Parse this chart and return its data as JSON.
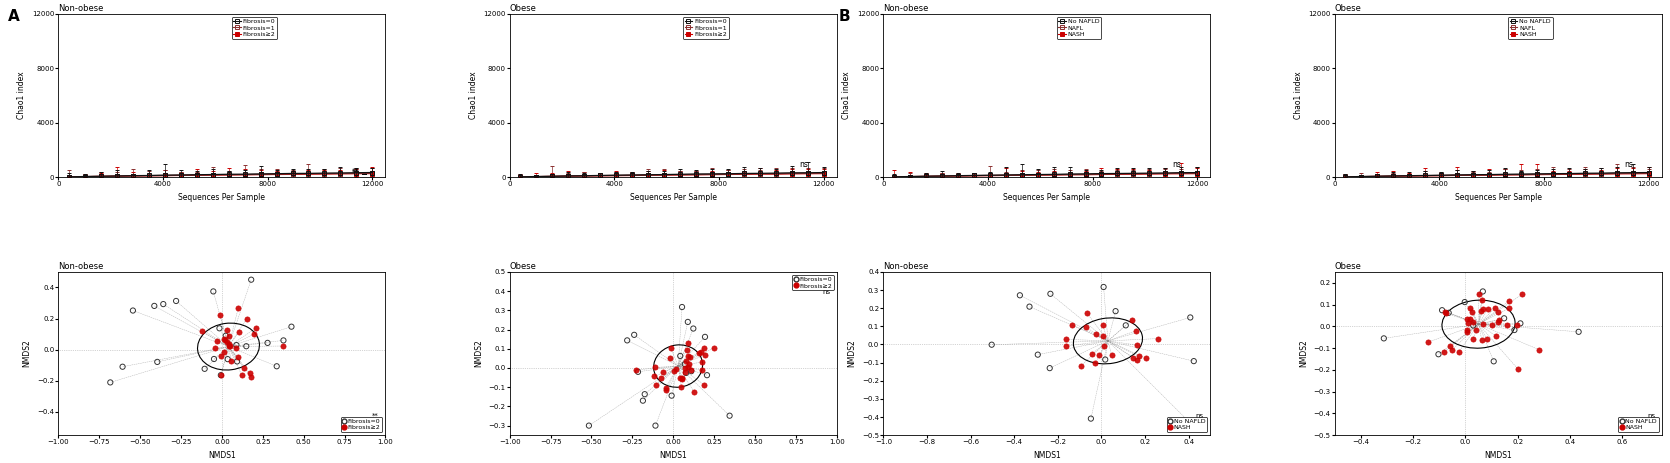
{
  "fig_width": 16.7,
  "fig_height": 4.63,
  "panel_A_label": "A",
  "panel_B_label": "B",
  "alpha_title_nonobese": "Non-obese",
  "alpha_title_obese": "Obese",
  "alpha_xlabel": "Sequences Per Sample",
  "alpha_ylabel": "Chao1 index",
  "alpha_xlim": [
    0,
    12500
  ],
  "alpha_ylim": [
    0,
    12000
  ],
  "alpha_xticks": [
    0,
    4000,
    8000,
    12000
  ],
  "alpha_yticks": [
    0,
    4000,
    8000,
    12000
  ],
  "fibrosis_labels": [
    "Fibrosis=0",
    "Fibrosis=1",
    "Fibrosis≥2"
  ],
  "fibrosis_colors": [
    "#111111",
    "#8B3030",
    "#CC0000"
  ],
  "fibrosis_mfc": [
    "none",
    "none",
    "#CC0000"
  ],
  "nash_labels": [
    "No NAFLD",
    "NAFL",
    "NASH"
  ],
  "nash_colors": [
    "#111111",
    "#8B3030",
    "#CC0000"
  ],
  "nash_mfc": [
    "none",
    "none",
    "#CC0000"
  ],
  "sig_A_nonobese": "**",
  "sig_A_obese": "ns",
  "sig_B_nonobese": "ns",
  "sig_B_obese": "ns",
  "nmds_xlabel": "NMDS1",
  "nmds_ylabel": "NMDS2",
  "background_color": "#ffffff",
  "dot_color_filled": "#CC0000",
  "dot_color_open": "#111111",
  "nmds_A_nonobese_xlim": [
    -1.0,
    1.0
  ],
  "nmds_A_nonobese_ylim": [
    -0.55,
    0.5
  ],
  "nmds_A_obese_xlim": [
    -1.0,
    1.0
  ],
  "nmds_A_obese_ylim": [
    -0.35,
    0.5
  ],
  "nmds_B_nonobese_xlim": [
    -1.0,
    0.5
  ],
  "nmds_B_nonobese_ylim": [
    -0.5,
    0.4
  ],
  "nmds_B_obese_xlim": [
    -0.5,
    0.75
  ],
  "nmds_B_obese_ylim": [
    -0.5,
    0.25
  ],
  "nmds_A_nonobese_leg": [
    "Fibrosis=0",
    "Fibrosis≥2"
  ],
  "nmds_A_obese_leg": [
    "Fibrosis=0",
    "Fibrosis≥2"
  ],
  "nmds_B_nonobese_leg": [
    "No NAFLD",
    "NASH"
  ],
  "nmds_B_obese_leg": [
    "No NAFLD",
    "NASH"
  ]
}
